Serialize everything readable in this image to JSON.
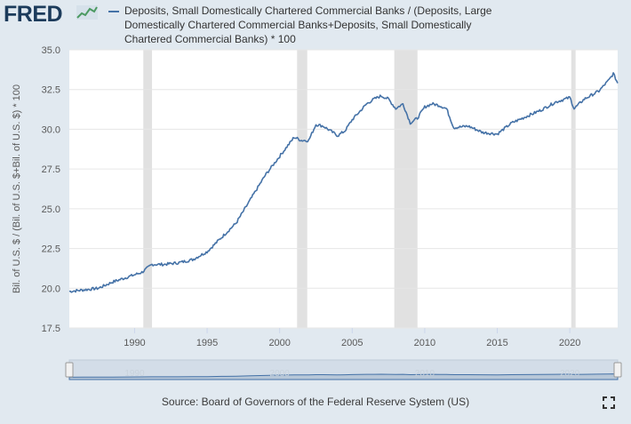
{
  "header": {
    "logo_text": "FRED",
    "logo_icon": "chart-line-icon"
  },
  "chart_data": {
    "type": "line",
    "title": "",
    "legend": [
      "Deposits, Small Domestically Chartered Commercial Banks / (Deposits, Large",
      "Domestically Chartered Commercial Banks+Deposits, Small Domestically",
      "Chartered Commercial Banks) * 100"
    ],
    "ylabel": "Bil. of U.S. $ / (Bil. of U.S. $+Bil. of U.S. $) * 100",
    "xlabel": "",
    "ylim": [
      17.5,
      35.0
    ],
    "xlim": [
      1985.5,
      2023.3
    ],
    "y_ticks": [
      "17.5",
      "20.0",
      "22.5",
      "25.0",
      "27.5",
      "30.0",
      "32.5",
      "35.0"
    ],
    "x_ticks": [
      "1990",
      "1995",
      "2000",
      "2005",
      "2010",
      "2015",
      "2020"
    ],
    "recessions": [
      [
        1990.6,
        1991.2
      ],
      [
        2001.2,
        2001.9
      ],
      [
        2007.9,
        2009.5
      ],
      [
        2020.1,
        2020.4
      ]
    ],
    "series": [
      {
        "color": "#4572a7",
        "points": [
          [
            1985.5,
            19.8
          ],
          [
            1986.5,
            19.9
          ],
          [
            1987.5,
            20.0
          ],
          [
            1988.5,
            20.4
          ],
          [
            1989.5,
            20.7
          ],
          [
            1990.5,
            21.0
          ],
          [
            1991.2,
            21.5
          ],
          [
            1992.0,
            21.5
          ],
          [
            1993.0,
            21.6
          ],
          [
            1994.0,
            21.8
          ],
          [
            1995.0,
            22.3
          ],
          [
            1996.0,
            23.2
          ],
          [
            1997.0,
            24.1
          ],
          [
            1998.0,
            25.6
          ],
          [
            1999.0,
            27.1
          ],
          [
            2000.0,
            28.3
          ],
          [
            2001.0,
            29.5
          ],
          [
            2001.5,
            29.3
          ],
          [
            2002.0,
            29.3
          ],
          [
            2002.5,
            30.3
          ],
          [
            2003.0,
            30.2
          ],
          [
            2003.5,
            29.9
          ],
          [
            2004.0,
            29.6
          ],
          [
            2004.5,
            29.9
          ],
          [
            2005.0,
            30.6
          ],
          [
            2006.0,
            31.6
          ],
          [
            2006.5,
            31.9
          ],
          [
            2007.0,
            32.1
          ],
          [
            2007.5,
            31.9
          ],
          [
            2008.0,
            31.3
          ],
          [
            2008.5,
            31.6
          ],
          [
            2009.0,
            30.4
          ],
          [
            2009.5,
            30.7
          ],
          [
            2010.0,
            31.4
          ],
          [
            2010.5,
            31.6
          ],
          [
            2011.0,
            31.5
          ],
          [
            2011.5,
            31.3
          ],
          [
            2012.0,
            30.1
          ],
          [
            2013.0,
            30.2
          ],
          [
            2014.0,
            29.8
          ],
          [
            2015.0,
            29.7
          ],
          [
            2016.0,
            30.4
          ],
          [
            2017.0,
            30.8
          ],
          [
            2018.0,
            31.2
          ],
          [
            2019.0,
            31.7
          ],
          [
            2020.0,
            32.0
          ],
          [
            2020.3,
            31.3
          ],
          [
            2021.0,
            31.9
          ],
          [
            2022.0,
            32.4
          ],
          [
            2022.7,
            33.1
          ],
          [
            2023.0,
            33.5
          ],
          [
            2023.3,
            32.9
          ]
        ]
      }
    ]
  },
  "navigator": {
    "labels": [
      "1990",
      "2000",
      "2010",
      "2020"
    ]
  },
  "footer": {
    "source": "Source: Board of Governors of the Federal Reserve System (US)",
    "fullscreen_icon": "fullscreen-icon"
  },
  "colors": {
    "background": "#e1e9f0",
    "plot_background": "#ffffff",
    "series": "#4572a7",
    "recession": "#e1e1e1",
    "logo": "#1c3b5b"
  }
}
